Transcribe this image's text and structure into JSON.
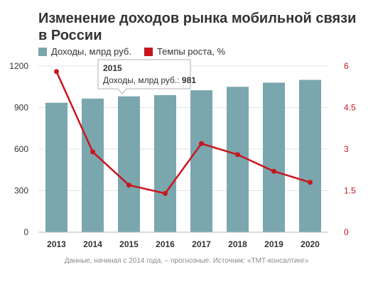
{
  "title": "Изменение доходов рынка мобильной связи в России",
  "colors": {
    "bars": "#7aa6ae",
    "line": "#c8161d",
    "grid": "#e3e3e3"
  },
  "chart_data": {
    "type": "bar",
    "categories": [
      "2013",
      "2014",
      "2015",
      "2016",
      "2017",
      "2018",
      "2019",
      "2020"
    ],
    "series": [
      {
        "name": "Доходы, млрд руб.",
        "type": "bar",
        "axis": "left",
        "values": [
          935,
          965,
          981,
          990,
          1025,
          1050,
          1080,
          1100
        ]
      },
      {
        "name": "Темпы роста, %",
        "type": "line",
        "axis": "right",
        "values": [
          5.8,
          2.9,
          1.7,
          1.4,
          3.2,
          2.8,
          2.2,
          1.8
        ]
      }
    ],
    "y_left": {
      "ticks": [
        "0",
        "300",
        "600",
        "900",
        "1200"
      ],
      "ylim": [
        0,
        1200
      ]
    },
    "y_right": {
      "ticks": [
        "0",
        "1.5",
        "3",
        "4.5",
        "6"
      ],
      "ylim": [
        0,
        6
      ]
    },
    "grid": true,
    "legend": "top-left"
  },
  "tooltip": {
    "year": "2015",
    "label": "Доходы, млрд руб.:",
    "value": "981"
  },
  "source": "Данные, начиная с 2014 года, – прогнозные. Источник: «ТМТ-консалтинг»"
}
